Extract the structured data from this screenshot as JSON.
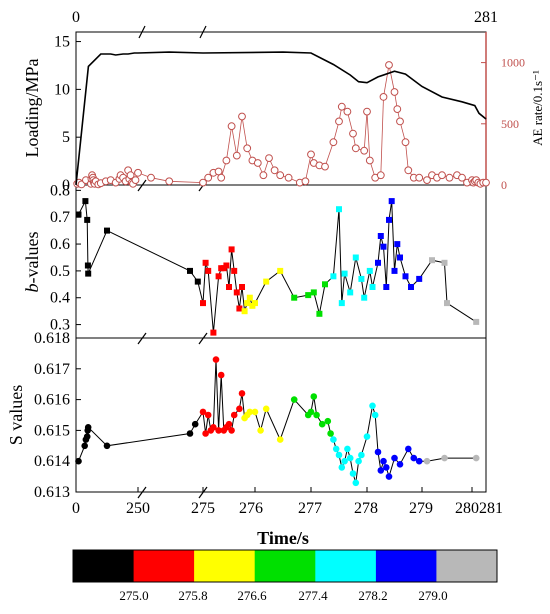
{
  "chart_data": [
    {
      "panel": "loading-and-ae-rate",
      "type": "line",
      "top_axis_tick_labels": [
        "0",
        "281"
      ],
      "ylabel_left": "Loading/MPa",
      "ylabel_right": "AE rate/0.1s⁻¹",
      "ylim_left": [
        0,
        16
      ],
      "yticks_left": [
        0,
        5,
        10,
        15
      ],
      "ylim_right": [
        0,
        1250
      ],
      "yticks_right": [
        0,
        500,
        1000
      ],
      "colors": {
        "loading": "#000000",
        "ae": "#c0504d"
      },
      "series": [
        {
          "name": "Loading",
          "axis": "left",
          "x": [
            0,
            50,
            100,
            140,
            160,
            190,
            210,
            235,
            250,
            262,
            275,
            276.5,
            277,
            277.4,
            277.7,
            277.85,
            278.0,
            278.2,
            278.5,
            278.7,
            279.0,
            279.4,
            279.8,
            280.2,
            280.5,
            281
          ],
          "values": [
            0,
            12.4,
            13.7,
            13.7,
            13.6,
            13.7,
            13.7,
            13.8,
            13.8,
            13.9,
            13.8,
            13.9,
            13.8,
            12.6,
            11.5,
            10.8,
            10.7,
            11.3,
            11.9,
            11.6,
            10.3,
            9.2,
            8.7,
            8.3,
            7.5,
            6.9
          ]
        },
        {
          "name": "AE rate",
          "axis": "right",
          "style": "open-circle",
          "x": [
            5,
            12,
            22,
            40,
            60,
            62,
            65,
            68,
            70,
            72,
            75,
            80,
            90,
            100,
            120,
            140,
            160,
            175,
            180,
            190,
            200,
            210,
            215,
            220,
            225,
            230,
            240,
            250,
            255,
            262,
            275,
            275.1,
            275.2,
            275.3,
            275.35,
            275.45,
            275.55,
            275.65,
            275.75,
            275.85,
            275.95,
            276.05,
            276.15,
            276.25,
            276.35,
            276.45,
            276.6,
            276.8,
            276.9,
            277.0,
            277.05,
            277.15,
            277.25,
            277.4,
            277.5,
            277.55,
            277.65,
            277.75,
            277.8,
            277.95,
            278.0,
            278.05,
            278.15,
            278.25,
            278.3,
            278.4,
            278.5,
            278.55,
            278.6,
            278.7,
            278.75,
            278.85,
            278.95,
            279.1,
            279.2,
            279.3,
            279.4,
            279.55,
            279.7,
            279.8,
            279.9,
            280.0,
            280.1,
            280.2,
            280.3,
            280.45,
            280.6,
            280.8,
            281
          ],
          "values": [
            10,
            20,
            5,
            40,
            10,
            50,
            80,
            60,
            40,
            20,
            10,
            30,
            5,
            15,
            30,
            40,
            20,
            50,
            80,
            60,
            30,
            120,
            50,
            80,
            20,
            10,
            40,
            100,
            60,
            30,
            20,
            60,
            100,
            110,
            60,
            200,
            480,
            240,
            560,
            300,
            200,
            180,
            80,
            220,
            120,
            80,
            60,
            20,
            30,
            250,
            180,
            160,
            150,
            350,
            520,
            640,
            600,
            420,
            300,
            280,
            600,
            200,
            60,
            80,
            720,
            980,
            760,
            620,
            520,
            350,
            120,
            60,
            60,
            40,
            80,
            60,
            80,
            60,
            80,
            60,
            20,
            40,
            20,
            30,
            40,
            20,
            10,
            20,
            20
          ]
        }
      ]
    },
    {
      "panel": "b-values",
      "type": "scatter",
      "ylabel": "b-values",
      "ylabel_italic_part": "b",
      "ylabel_rest": "-values",
      "ylim": [
        0.25,
        0.82
      ],
      "yticks": [
        0.3,
        0.4,
        0.5,
        0.6,
        0.7,
        0.8
      ],
      "x": [
        10,
        38,
        45,
        48,
        49,
        125,
        270,
        273,
        275,
        275.05,
        275.1,
        275.2,
        275.3,
        275.35,
        275.4,
        275.45,
        275.5,
        275.55,
        275.6,
        275.65,
        275.7,
        275.75,
        275.8,
        275.85,
        275.9,
        275.95,
        276.0,
        276.2,
        276.45,
        276.7,
        276.95,
        277.05,
        277.15,
        277.25,
        277.4,
        277.5,
        277.55,
        277.6,
        277.7,
        277.8,
        277.9,
        277.95,
        278.05,
        278.1,
        278.2,
        278.25,
        278.3,
        278.35,
        278.4,
        278.45,
        278.5,
        278.55,
        278.6,
        278.7,
        278.8,
        278.95,
        279.2,
        279.45,
        279.5,
        280.3
      ],
      "values": [
        0.71,
        0.76,
        0.69,
        0.52,
        0.49,
        0.65,
        0.5,
        0.46,
        0.38,
        0.53,
        0.5,
        0.27,
        0.48,
        0.51,
        0.51,
        0.52,
        0.44,
        0.58,
        0.5,
        0.42,
        0.36,
        0.44,
        0.35,
        0.38,
        0.4,
        0.37,
        0.38,
        0.46,
        0.5,
        0.4,
        0.41,
        0.42,
        0.34,
        0.45,
        0.48,
        0.73,
        0.38,
        0.49,
        0.42,
        0.55,
        0.47,
        0.4,
        0.5,
        0.44,
        0.53,
        0.63,
        0.59,
        0.44,
        0.69,
        0.76,
        0.5,
        0.6,
        0.55,
        0.48,
        0.44,
        0.47,
        0.54,
        0.53,
        0.38,
        0.31
      ]
    },
    {
      "panel": "s-values",
      "type": "scatter",
      "ylabel": "S values",
      "ylim": [
        0.613,
        0.618
      ],
      "yticks": [
        0.613,
        0.614,
        0.615,
        0.616,
        0.617,
        0.618
      ],
      "x": [
        10,
        35,
        40,
        45,
        47,
        49,
        125,
        270,
        272,
        275,
        275.05,
        275.1,
        275.15,
        275.2,
        275.25,
        275.3,
        275.35,
        275.4,
        275.45,
        275.5,
        275.55,
        275.6,
        275.7,
        275.75,
        275.8,
        275.85,
        275.9,
        276.0,
        276.1,
        276.2,
        276.45,
        276.7,
        276.95,
        277.0,
        277.05,
        277.1,
        277.2,
        277.3,
        277.35,
        277.4,
        277.45,
        277.5,
        277.55,
        277.6,
        277.65,
        277.7,
        277.75,
        277.8,
        277.85,
        277.9,
        278.0,
        278.1,
        278.15,
        278.2,
        278.25,
        278.3,
        278.35,
        278.4,
        278.5,
        278.6,
        278.75,
        278.85,
        278.95,
        279.1,
        279.45,
        280.3
      ],
      "values": [
        0.614,
        0.6145,
        0.6147,
        0.6148,
        0.615,
        0.6151,
        0.6145,
        0.6149,
        0.6152,
        0.6156,
        0.6149,
        0.6155,
        0.615,
        0.6151,
        0.6173,
        0.615,
        0.6168,
        0.615,
        0.6151,
        0.6152,
        0.615,
        0.6155,
        0.6157,
        0.6162,
        0.6154,
        0.6155,
        0.6156,
        0.6156,
        0.615,
        0.6157,
        0.6147,
        0.616,
        0.6155,
        0.6156,
        0.6161,
        0.6155,
        0.6152,
        0.6153,
        0.6149,
        0.6147,
        0.6144,
        0.6142,
        0.6138,
        0.614,
        0.6144,
        0.6141,
        0.6136,
        0.6133,
        0.614,
        0.6142,
        0.6148,
        0.6158,
        0.6155,
        0.6143,
        0.6137,
        0.614,
        0.6138,
        0.6135,
        0.6141,
        0.6139,
        0.6144,
        0.6141,
        0.614,
        0.614,
        0.6141,
        0.6141
      ]
    }
  ],
  "time_axis": {
    "xlabel": "Time/s",
    "tick_labels": [
      "0",
      "250",
      "275",
      "276",
      "277",
      "278",
      "279",
      "280",
      "281"
    ]
  },
  "colorbar": {
    "tick_labels": [
      "275.0",
      "275.8",
      "276.6",
      "277.4",
      "278.2",
      "279.0"
    ],
    "bands": [
      {
        "color": "#000000",
        "until": 275.0
      },
      {
        "color": "#ff0000",
        "until": 275.8
      },
      {
        "color": "#ffff00",
        "until": 276.6
      },
      {
        "color": "#00e000",
        "until": 277.4
      },
      {
        "color": "#00ffff",
        "until": 278.2
      },
      {
        "color": "#0000ff",
        "until": 279.0
      },
      {
        "color": "#b8b8b8",
        "until": 281
      }
    ]
  }
}
